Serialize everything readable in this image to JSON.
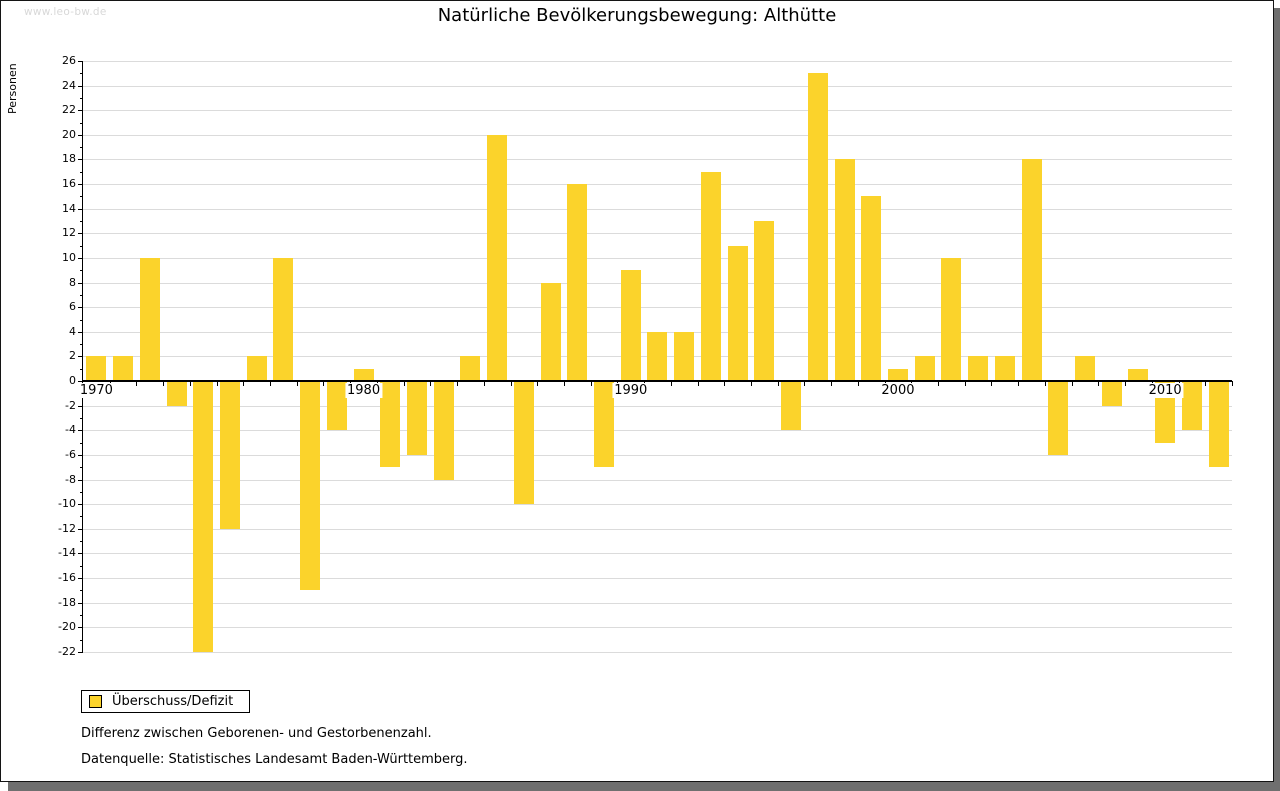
{
  "watermark": "www.leo-bw.de",
  "title": "Natürliche Bevölkerungsbewegung: Althütte",
  "notes": {
    "line1": "Differenz zwischen Geborenen- und Gestorbenenzahl.",
    "line2": "Datenquelle: Statistisches Landesamt Baden-Württemberg."
  },
  "chart_data": {
    "type": "bar",
    "title": "Natürliche Bevölkerungsbewegung: Althütte",
    "series_label": "Überschuss/Defizit",
    "xlabel": "",
    "ylabel": "Personen",
    "ylim": [
      -22,
      26
    ],
    "ytick_step": 2,
    "grid": true,
    "legend_position": "bottom-left-below-plot",
    "bar_color": "#FBD32B",
    "categories": [
      1970,
      1971,
      1972,
      1973,
      1974,
      1975,
      1976,
      1977,
      1978,
      1979,
      1980,
      1981,
      1982,
      1983,
      1984,
      1985,
      1986,
      1987,
      1988,
      1989,
      1990,
      1991,
      1992,
      1993,
      1994,
      1995,
      1996,
      1997,
      1998,
      1999,
      2000,
      2001,
      2002,
      2003,
      2004,
      2005,
      2006,
      2007,
      2008,
      2009,
      2010,
      2011,
      2012
    ],
    "values": [
      2,
      2,
      10,
      -2,
      -22,
      -12,
      2,
      10,
      -17,
      -4,
      1,
      -7,
      -6,
      -8,
      2,
      20,
      -10,
      8,
      16,
      -7,
      9,
      4,
      4,
      17,
      11,
      13,
      -4,
      25,
      18,
      15,
      1,
      2,
      10,
      2,
      2,
      18,
      -6,
      2,
      -2,
      1,
      -5,
      -4,
      -7
    ],
    "x_decade_labels": [
      1970,
      1980,
      1990,
      2000,
      2010
    ]
  }
}
